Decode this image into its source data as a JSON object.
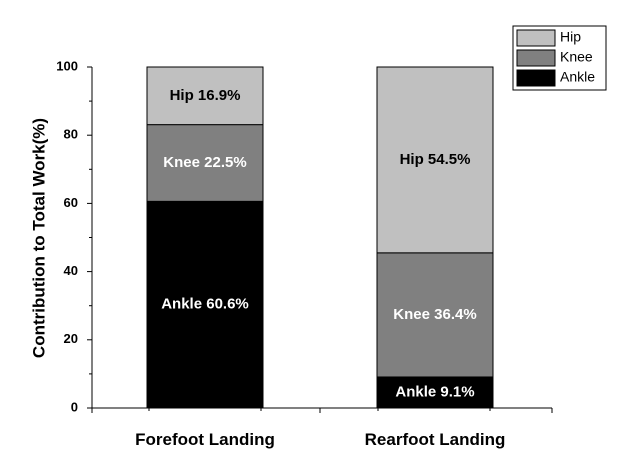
{
  "chart_data": {
    "type": "bar",
    "stacked": true,
    "categories": [
      "Forefoot Landing",
      "Rearfoot Landing"
    ],
    "series": [
      {
        "name": "Ankle",
        "values": [
          60.6,
          9.1
        ],
        "color": "#000000",
        "label_color": "#ffffff",
        "labels": [
          "Ankle 60.6%",
          "Ankle 9.1%"
        ]
      },
      {
        "name": "Knee",
        "values": [
          22.5,
          36.4
        ],
        "color": "#808080",
        "label_color": "#ffffff",
        "labels": [
          "Knee 22.5%",
          "Knee 36.4%"
        ]
      },
      {
        "name": "Hip",
        "values": [
          16.9,
          54.5
        ],
        "color": "#c0c0c0",
        "label_color": "#000000",
        "labels": [
          "Hip 16.9%",
          "Hip 54.5%"
        ]
      }
    ],
    "legend_order": [
      "Hip",
      "Knee",
      "Ankle"
    ],
    "legend_position": "top-right",
    "ylabel": "Contribution to Total Work(%)",
    "xlabel": "",
    "ylim": [
      0,
      100
    ],
    "yticks": [
      0,
      20,
      40,
      60,
      80,
      100
    ],
    "grid": false
  }
}
